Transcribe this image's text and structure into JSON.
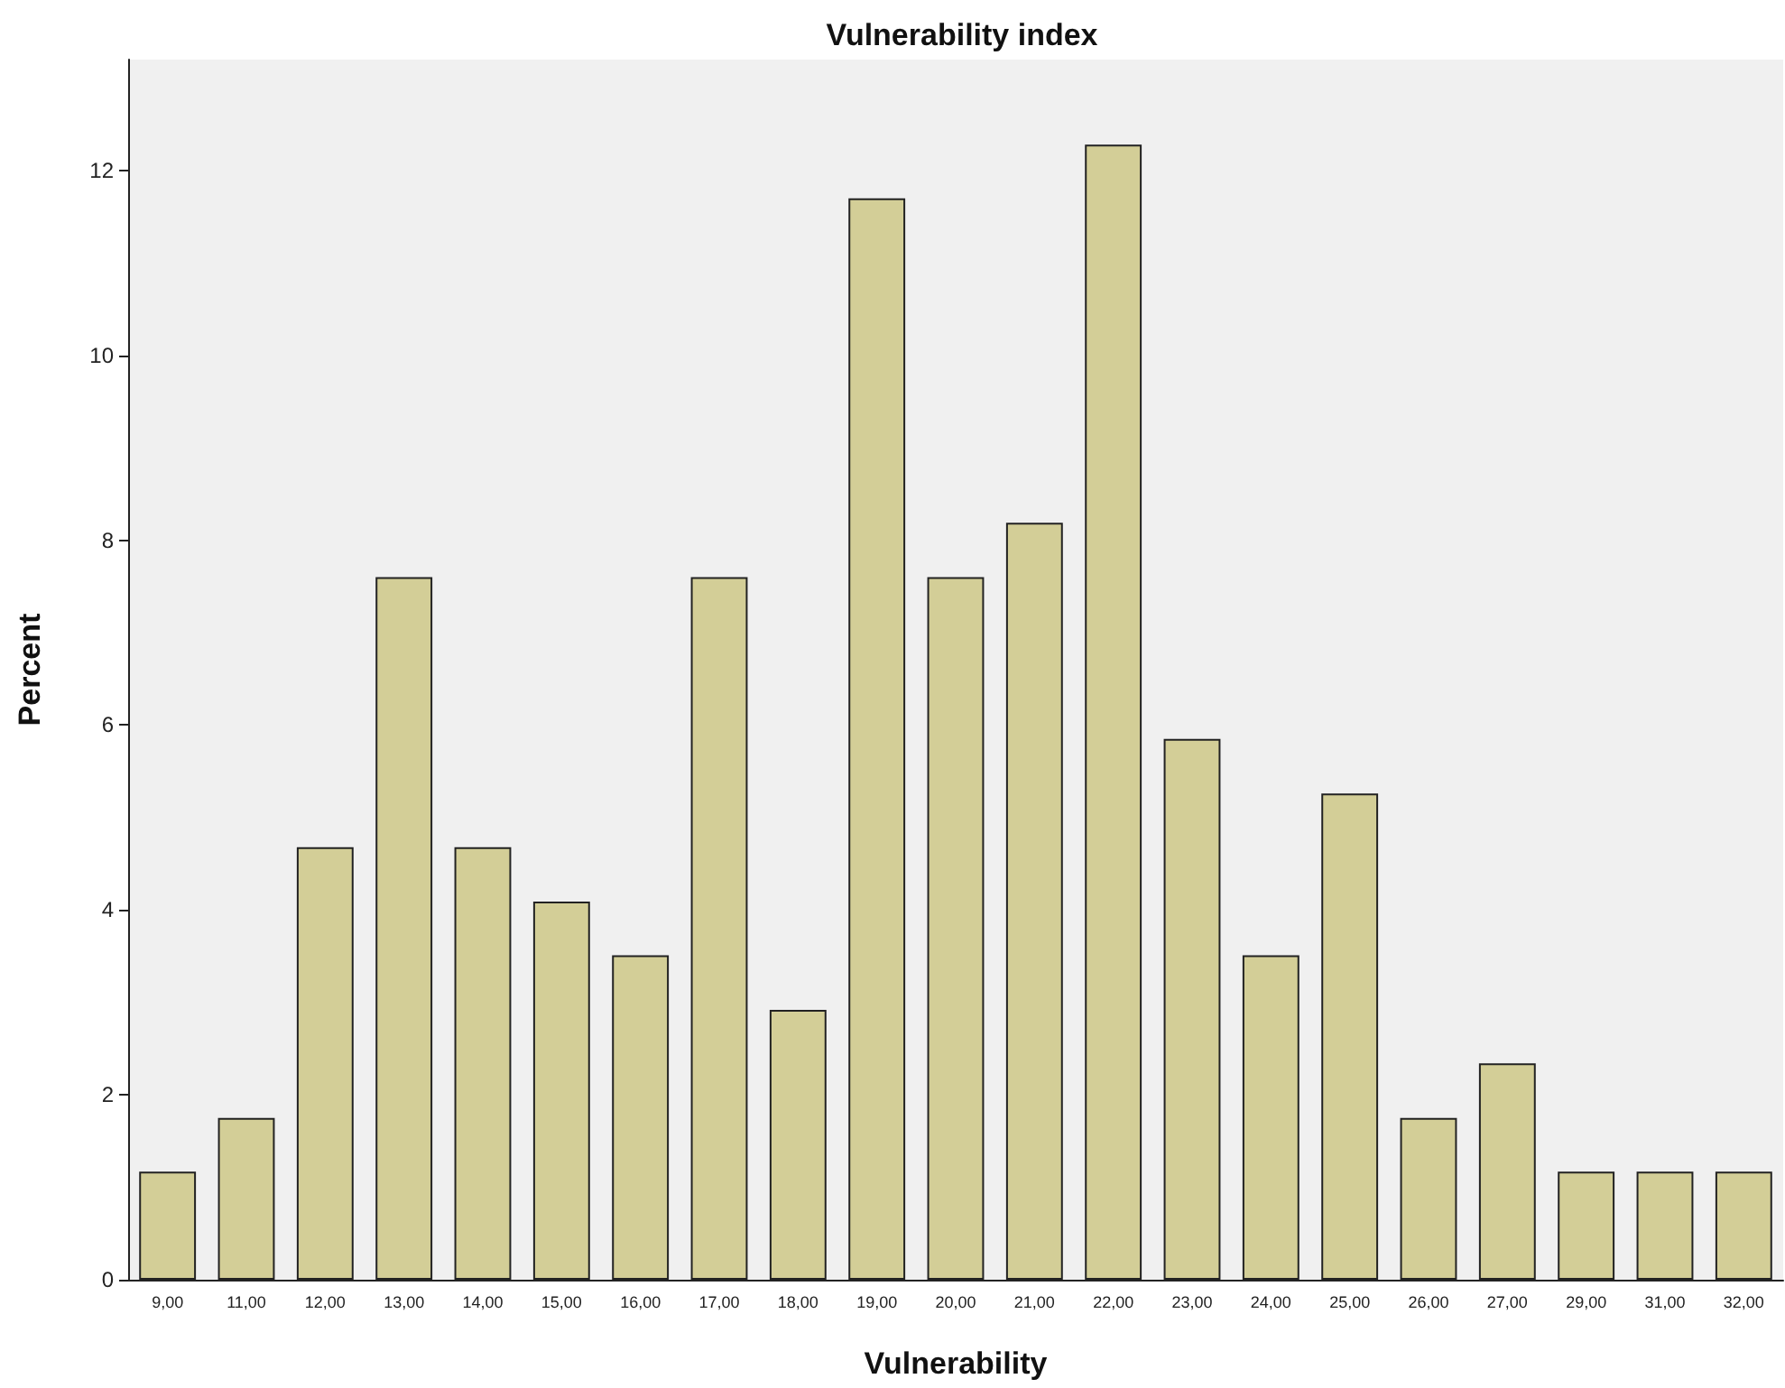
{
  "chart_data": {
    "type": "bar",
    "title": "Vulnerability index",
    "xlabel": "Vulnerability",
    "ylabel": "Percent",
    "categories": [
      "9,00",
      "11,00",
      "12,00",
      "13,00",
      "14,00",
      "15,00",
      "16,00",
      "17,00",
      "18,00",
      "19,00",
      "20,00",
      "21,00",
      "22,00",
      "23,00",
      "24,00",
      "25,00",
      "26,00",
      "27,00",
      "29,00",
      "31,00",
      "32,00"
    ],
    "values": [
      1.17,
      1.75,
      4.68,
      7.6,
      4.68,
      4.09,
      3.51,
      7.6,
      2.92,
      11.7,
      7.6,
      8.19,
      12.28,
      5.85,
      3.51,
      5.26,
      1.75,
      2.34,
      1.17,
      1.17,
      1.17
    ],
    "color": "#d3ce97",
    "ylim": [
      0,
      13.2
    ],
    "yticks": [
      0,
      2,
      4,
      6,
      8,
      10,
      12
    ]
  }
}
